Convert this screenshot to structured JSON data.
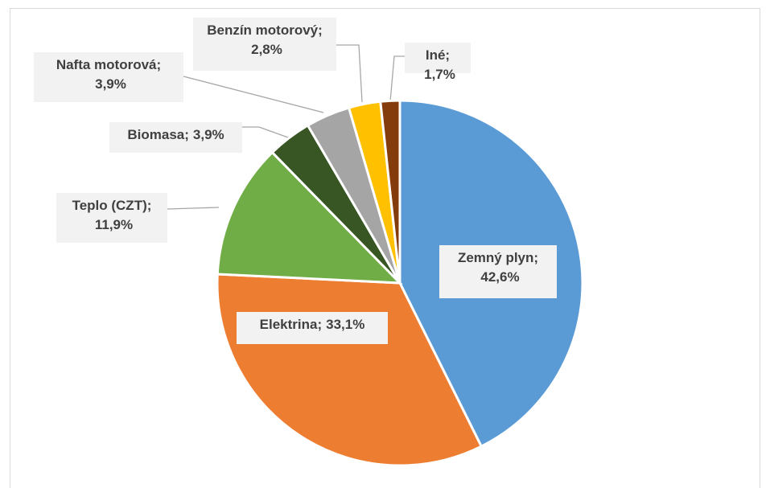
{
  "chart_data": {
    "type": "pie",
    "categories": [
      "Zemný plyn;",
      "Elektrina;",
      "Teplo (CZT);",
      "Biomasa;",
      "Nafta motorová;",
      "Benzín motorový;",
      "Iné;"
    ],
    "values": [
      42.6,
      33.1,
      11.9,
      3.9,
      3.9,
      2.8,
      1.7
    ],
    "value_labels": [
      "42,6%",
      "33,1%",
      "11,9%",
      "3,9%",
      "3,9%",
      "2,8%",
      "1,7%"
    ],
    "colors": [
      "#5b9bd5",
      "#ed7d31",
      "#70ad47",
      "#375623",
      "#a5a5a5",
      "#ffc000",
      "#843c0c"
    ]
  }
}
